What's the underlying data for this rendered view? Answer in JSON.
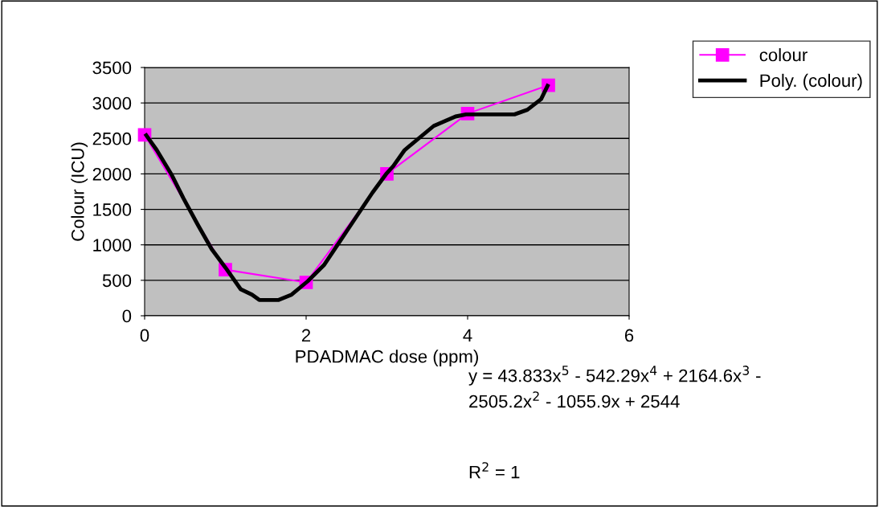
{
  "chart_data": {
    "type": "line",
    "xlabel": "PDADMAC dose (ppm)",
    "ylabel": "Colour (ICU)",
    "xlim": [
      0,
      6
    ],
    "xticks": [
      0,
      2,
      4,
      6
    ],
    "ylim": [
      0,
      3500
    ],
    "yticks": [
      0,
      500,
      1000,
      1500,
      2000,
      2500,
      3000,
      3500
    ],
    "grid": "y",
    "legend": "top right",
    "series": [
      {
        "name": "colour",
        "color": "#ff00ff",
        "marker": "square",
        "x": [
          0,
          1,
          2,
          3,
          4,
          5
        ],
        "values": [
          2550,
          650,
          470,
          2000,
          2850,
          3250
        ]
      },
      {
        "name": "Poly. (colour)",
        "color": "#000000",
        "type": "line",
        "marker": "none",
        "x": [
          0.02,
          0.15,
          0.33,
          0.48,
          0.66,
          0.83,
          1.0,
          1.19,
          1.33,
          1.42,
          1.66,
          1.82,
          2.02,
          2.22,
          2.42,
          2.62,
          2.82,
          2.99,
          3.08,
          3.22,
          3.58,
          3.85,
          3.98,
          4.58,
          4.74,
          4.91,
          4.99
        ],
        "values": [
          2545,
          2336,
          1997,
          1657,
          1280,
          940,
          680,
          374,
          298,
          223,
          223,
          298,
          487,
          713,
          1053,
          1393,
          1733,
          1997,
          2110,
          2336,
          2676,
          2809,
          2839,
          2839,
          2904,
          3054,
          3242
        ]
      }
    ],
    "annotations": [
      "y = 43.833x$^{5}$ - 542.29x$^{4}$ + 2164.6x$^{3}$ -\n2505.2x$^{2}$ - 1055.9x + 2544",
      "R$^{2}$ = 1"
    ]
  }
}
